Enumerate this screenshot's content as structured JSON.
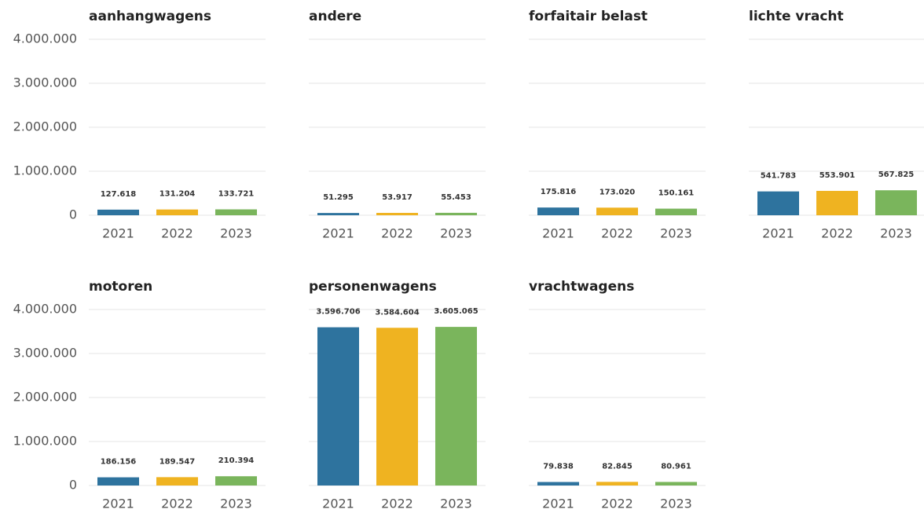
{
  "chart_data": [
    {
      "type": "bar",
      "title": "aanhangwagens",
      "categories": [
        "2021",
        "2022",
        "2023"
      ],
      "values": [
        127618,
        131204,
        133721
      ],
      "value_labels": [
        "127.618",
        "131.204",
        "133.721"
      ],
      "colors": [
        "#2e739e",
        "#efb321",
        "#7ab55c"
      ],
      "ylim": [
        0,
        4000000
      ],
      "yticks": [
        0,
        {
          "value": 1000000,
          "label": "1.000.000"
        },
        {
          "value": 2000000,
          "label": "2.000.000"
        },
        {
          "value": 3000000,
          "label": "3.000.000"
        },
        {
          "value": 4000000,
          "label": "4.000.000"
        }
      ],
      "show_ytick_labels": true,
      "grid": true
    },
    {
      "type": "bar",
      "title": "andere",
      "categories": [
        "2021",
        "2022",
        "2023"
      ],
      "values": [
        51295,
        53917,
        55453
      ],
      "value_labels": [
        "51.295",
        "53.917",
        "55.453"
      ],
      "colors": [
        "#2e739e",
        "#efb321",
        "#7ab55c"
      ],
      "ylim": [
        0,
        4000000
      ],
      "yticks": [
        0,
        1000000,
        2000000,
        3000000,
        4000000
      ],
      "show_ytick_labels": false,
      "grid": true
    },
    {
      "type": "bar",
      "title": "forfaitair belast",
      "categories": [
        "2021",
        "2022",
        "2023"
      ],
      "values": [
        175816,
        173020,
        150161
      ],
      "value_labels": [
        "175.816",
        "173.020",
        "150.161"
      ],
      "colors": [
        "#2e739e",
        "#efb321",
        "#7ab55c"
      ],
      "ylim": [
        0,
        4000000
      ],
      "yticks": [
        0,
        1000000,
        2000000,
        3000000,
        4000000
      ],
      "show_ytick_labels": false,
      "grid": true
    },
    {
      "type": "bar",
      "title": "lichte vracht",
      "categories": [
        "2021",
        "2022",
        "2023"
      ],
      "values": [
        541783,
        553901,
        567825
      ],
      "value_labels": [
        "541.783",
        "553.901",
        "567.825"
      ],
      "colors": [
        "#2e739e",
        "#efb321",
        "#7ab55c"
      ],
      "ylim": [
        0,
        4000000
      ],
      "yticks": [
        0,
        1000000,
        2000000,
        3000000,
        4000000
      ],
      "show_ytick_labels": false,
      "grid": true
    },
    {
      "type": "bar",
      "title": "motoren",
      "categories": [
        "2021",
        "2022",
        "2023"
      ],
      "values": [
        186156,
        189547,
        210394
      ],
      "value_labels": [
        "186.156",
        "189.547",
        "210.394"
      ],
      "colors": [
        "#2e739e",
        "#efb321",
        "#7ab55c"
      ],
      "ylim": [
        0,
        4000000
      ],
      "yticks": [
        0,
        {
          "value": 1000000,
          "label": "1.000.000"
        },
        {
          "value": 2000000,
          "label": "2.000.000"
        },
        {
          "value": 3000000,
          "label": "3.000.000"
        },
        {
          "value": 4000000,
          "label": "4.000.000"
        }
      ],
      "show_ytick_labels": true,
      "grid": true
    },
    {
      "type": "bar",
      "title": "personenwagens",
      "categories": [
        "2021",
        "2022",
        "2023"
      ],
      "values": [
        3596706,
        3584604,
        3605065
      ],
      "value_labels": [
        "3.596.706",
        "3.584.604",
        "3.605.065"
      ],
      "colors": [
        "#2e739e",
        "#efb321",
        "#7ab55c"
      ],
      "ylim": [
        0,
        4000000
      ],
      "yticks": [
        0,
        1000000,
        2000000,
        3000000,
        4000000
      ],
      "show_ytick_labels": false,
      "grid": true
    },
    {
      "type": "bar",
      "title": "vrachtwagens",
      "categories": [
        "2021",
        "2022",
        "2023"
      ],
      "values": [
        79838,
        82845,
        80961
      ],
      "value_labels": [
        "79.838",
        "82.845",
        "80.961"
      ],
      "colors": [
        "#2e739e",
        "#efb321",
        "#7ab55c"
      ],
      "ylim": [
        0,
        4000000
      ],
      "yticks": [
        0,
        1000000,
        2000000,
        3000000,
        4000000
      ],
      "show_ytick_labels": false,
      "grid": true
    }
  ]
}
